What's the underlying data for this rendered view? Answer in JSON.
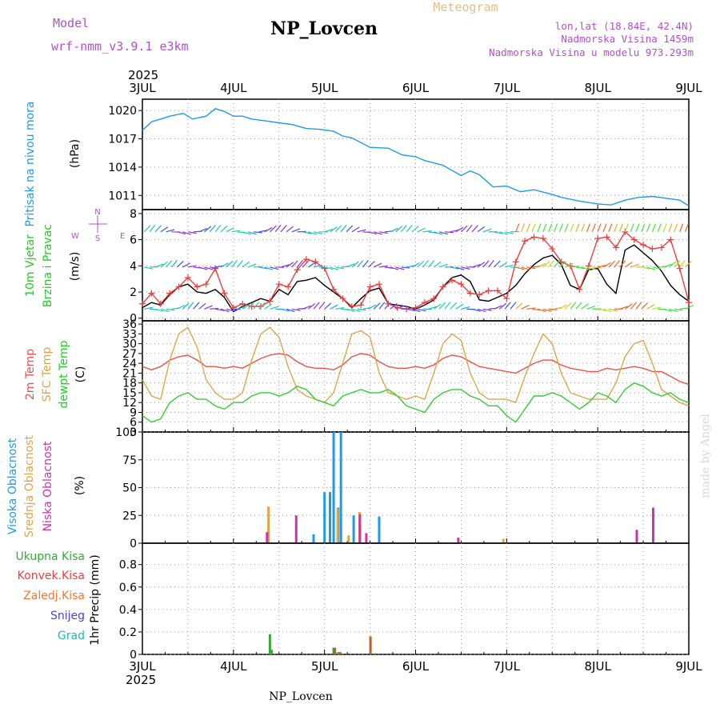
{
  "header": {
    "model_label": "Model",
    "model_name": "wrf-nmm_v3.9.1 e3km",
    "station": "NP_Lovcen",
    "meteogram": "Meteogram",
    "lonlat": "lon,lat (18.84E, 42.4N)",
    "elevation": "Nadmorska Visina 1459m",
    "model_elevation": "Nadmorska Visina u modelu 973.293m"
  },
  "time_axis": {
    "year": "2025",
    "ticks": [
      "3JUL",
      "4JUL",
      "5JUL",
      "6JUL",
      "7JUL",
      "8JUL",
      "9JUL"
    ]
  },
  "footer": {
    "station": "NP_Lovcen",
    "watermark": "made by Angel"
  },
  "colors": {
    "pressure": "#1e9be8",
    "temp2m": "#e8524a",
    "sfc": "#dca64a",
    "dewpt": "#33cc33",
    "high": "#1e9be8",
    "mid": "#dca64a",
    "low": "#cc33aa",
    "total": "#33aa33",
    "conv": "#e84040",
    "frozen": "#f07830",
    "snow": "#4444dd",
    "hail": "#22bbaa",
    "wind_speed": "#000000",
    "gust": "#e84040"
  },
  "chart_data": [
    {
      "type": "line",
      "id": "pressure",
      "ylabel_lines": [
        "Pritisak na nivou mora",
        "(hPa)"
      ],
      "yticks": [
        1011,
        1014,
        1017,
        1020
      ],
      "ylim": [
        1009.5,
        1021.2
      ],
      "x_days": [
        0,
        0.1,
        0.2,
        0.3,
        0.45,
        0.55,
        0.7,
        0.8,
        0.9,
        1.0,
        1.1,
        1.2,
        1.35,
        1.5,
        1.65,
        1.8,
        1.95,
        2.1,
        2.2,
        2.3,
        2.5,
        2.7,
        2.85,
        3.0,
        3.1,
        3.3,
        3.5,
        3.6,
        3.7,
        3.85,
        4.0,
        4.15,
        4.3,
        4.5,
        4.6,
        4.8,
        5.0,
        5.15,
        5.3,
        5.45,
        5.6,
        5.75,
        5.9,
        6.0
      ],
      "series": [
        {
          "name": "Pritisak",
          "color": "#1e9be8",
          "values": [
            1017.9,
            1018.8,
            1019.1,
            1019.4,
            1019.7,
            1019.1,
            1019.4,
            1020.2,
            1019.9,
            1019.4,
            1019.4,
            1019.1,
            1018.9,
            1018.7,
            1018.5,
            1018.1,
            1018.0,
            1017.8,
            1017.3,
            1017.1,
            1016.1,
            1016.0,
            1015.3,
            1015.1,
            1014.7,
            1014.2,
            1013.1,
            1013.6,
            1013.2,
            1011.9,
            1012.0,
            1011.4,
            1011.6,
            1011.1,
            1010.8,
            1010.4,
            1010.1,
            1010.0,
            1010.5,
            1010.8,
            1010.9,
            1010.7,
            1010.5,
            1009.9
          ]
        }
      ]
    },
    {
      "type": "line",
      "id": "wind",
      "ylabel_lines": [
        "10m Vjetar",
        "Brzina i Pravac",
        "(m/s)"
      ],
      "compass": {
        "n": "N",
        "s": "S",
        "e": "E",
        "w": "W"
      },
      "yticks": [
        0,
        2,
        4,
        6,
        8
      ],
      "ylim": [
        -0.2,
        8.3
      ],
      "x_days": [
        0,
        0.1,
        0.2,
        0.3,
        0.4,
        0.5,
        0.6,
        0.7,
        0.8,
        0.9,
        1.0,
        1.1,
        1.2,
        1.3,
        1.4,
        1.5,
        1.6,
        1.7,
        1.8,
        1.9,
        2.0,
        2.1,
        2.2,
        2.3,
        2.4,
        2.5,
        2.6,
        2.7,
        2.8,
        2.9,
        3.0,
        3.1,
        3.2,
        3.3,
        3.4,
        3.5,
        3.6,
        3.7,
        3.8,
        3.9,
        4.0,
        4.1,
        4.2,
        4.3,
        4.4,
        4.5,
        4.6,
        4.7,
        4.8,
        4.9,
        5.0,
        5.1,
        5.2,
        5.3,
        5.4,
        5.5,
        5.6,
        5.7,
        5.8,
        5.9,
        6.0
      ],
      "series": [
        {
          "name": "Brzina vjetra",
          "color": "#000000",
          "values": [
            0.8,
            1.2,
            1.0,
            1.8,
            2.4,
            2.6,
            2.0,
            1.9,
            2.2,
            1.6,
            0.5,
            0.9,
            1.2,
            1.5,
            1.3,
            2.2,
            1.8,
            2.8,
            2.9,
            3.1,
            2.5,
            2.0,
            1.5,
            0.8,
            1.5,
            2.1,
            2.3,
            1.1,
            1.0,
            0.9,
            0.7,
            1.0,
            1.4,
            2.4,
            3.1,
            3.3,
            2.8,
            1.4,
            1.3,
            1.6,
            1.9,
            2.5,
            3.4,
            4.1,
            4.6,
            4.8,
            4.1,
            2.5,
            2.2,
            3.7,
            3.8,
            2.6,
            1.9,
            5.2,
            5.6,
            5.0,
            4.4,
            3.6,
            2.5,
            1.8,
            1.3
          ]
        },
        {
          "name": "Udari",
          "color": "#e84040",
          "marker": "cross",
          "values": [
            1.1,
            1.9,
            1.1,
            1.9,
            2.4,
            3.1,
            2.4,
            2.6,
            3.8,
            1.9,
            0.8,
            1.1,
            0.9,
            0.9,
            1.3,
            2.6,
            2.4,
            3.7,
            4.5,
            4.3,
            3.8,
            2.2,
            1.5,
            0.9,
            1.0,
            2.4,
            2.6,
            1.1,
            0.8,
            0.7,
            0.8,
            1.2,
            1.5,
            2.4,
            2.9,
            2.6,
            1.9,
            1.8,
            2.1,
            2.1,
            1.5,
            4.3,
            5.9,
            6.2,
            6.1,
            5.3,
            4.3,
            4.0,
            2.2,
            4.0,
            6.1,
            6.2,
            5.4,
            6.6,
            6.0,
            5.6,
            5.3,
            5.4,
            6.0,
            3.8,
            1.2
          ]
        }
      ]
    },
    {
      "type": "line",
      "id": "temp",
      "ylabel_lines": [
        "2m Temp",
        "SFC Temp",
        "dewpt Temp",
        "(C)"
      ],
      "yticks": [
        3,
        6,
        9,
        12,
        15,
        18,
        21,
        24,
        27,
        30,
        33,
        36
      ],
      "ylim": [
        3,
        37
      ],
      "x_days": [
        0,
        0.1,
        0.2,
        0.3,
        0.4,
        0.5,
        0.6,
        0.7,
        0.8,
        0.9,
        1.0,
        1.1,
        1.2,
        1.3,
        1.4,
        1.5,
        1.6,
        1.7,
        1.8,
        1.9,
        2.0,
        2.1,
        2.2,
        2.3,
        2.4,
        2.5,
        2.6,
        2.7,
        2.8,
        2.9,
        3.0,
        3.1,
        3.2,
        3.3,
        3.4,
        3.5,
        3.6,
        3.7,
        3.8,
        3.9,
        4.0,
        4.1,
        4.2,
        4.3,
        4.4,
        4.5,
        4.6,
        4.7,
        4.8,
        4.9,
        5.0,
        5.1,
        5.2,
        5.3,
        5.4,
        5.5,
        5.6,
        5.7,
        5.8,
        5.9,
        6.0
      ],
      "series": [
        {
          "name": "2m Temp",
          "color": "#e8524a",
          "values": [
            23,
            22,
            23,
            25,
            26,
            26.5,
            25,
            23,
            23,
            22.5,
            23,
            22.5,
            24,
            25.5,
            26.5,
            27,
            26.5,
            24.5,
            23,
            22.5,
            22.5,
            22,
            23.5,
            26,
            27,
            26.5,
            24.5,
            23,
            22.5,
            22.5,
            23,
            22.5,
            23.5,
            25.5,
            26.5,
            26,
            24.5,
            23,
            22.5,
            22,
            21.5,
            21,
            22.5,
            24,
            25,
            25,
            23.5,
            22.5,
            22,
            21.5,
            21.5,
            22.5,
            22,
            22.5,
            23,
            22.5,
            21.5,
            21.5,
            20,
            18.5,
            17.5
          ]
        },
        {
          "name": "SFC Temp",
          "color": "#dca64a",
          "values": [
            19,
            14,
            13,
            25,
            33,
            35,
            29,
            19,
            15,
            13,
            13,
            15,
            25,
            33,
            35,
            32,
            23,
            16,
            14,
            13,
            12,
            15,
            24,
            33,
            34,
            32,
            21,
            15,
            14,
            13,
            14,
            13,
            21,
            30,
            33,
            31,
            21,
            15,
            13,
            13,
            13,
            12,
            20,
            27,
            33,
            30,
            21,
            15,
            14,
            13,
            13,
            13,
            18,
            26,
            30,
            31,
            24,
            16,
            14,
            12,
            11
          ]
        },
        {
          "name": "dewpt Temp",
          "color": "#33cc33",
          "values": [
            8,
            6,
            7,
            12,
            14,
            15,
            13,
            13,
            11,
            10,
            12,
            12,
            14,
            15,
            15,
            14,
            15,
            17,
            16,
            13,
            12,
            11,
            14,
            15,
            16,
            15,
            15,
            16,
            14,
            11,
            10,
            9,
            13,
            15,
            16,
            16,
            14,
            13,
            11,
            11,
            8,
            6,
            10,
            14,
            14,
            15,
            14,
            12,
            10,
            12,
            15,
            14,
            12,
            16,
            18,
            17,
            15,
            14,
            15,
            13,
            12
          ]
        }
      ]
    },
    {
      "type": "bar",
      "id": "clouds",
      "ylabel_lines": [
        "Visoka Oblacnost",
        "Srednja Oblacnost",
        "Niska Oblacnost",
        "(%)"
      ],
      "yticks": [
        0,
        25,
        50,
        75,
        100
      ],
      "ylim": [
        0,
        100
      ],
      "series": [
        {
          "name": "Visoka Oblacnost",
          "color": "#1e9be8",
          "x_days": [
            1.88,
            2.0,
            2.06,
            2.1,
            2.15,
            2.18,
            2.32,
            2.6
          ],
          "values": [
            8,
            46,
            46,
            100,
            32,
            100,
            25,
            24
          ]
        },
        {
          "name": "Srednja Oblacnost",
          "color": "#dca64a",
          "x_days": [
            1.38,
            2.14,
            2.26,
            2.38,
            3.96
          ],
          "values": [
            33,
            31,
            7,
            28,
            4
          ]
        },
        {
          "name": "Niska Oblacnost",
          "color": "#cc33aa",
          "x_days": [
            1.36,
            1.68,
            2.38,
            2.45,
            3.46,
            5.42,
            5.6
          ],
          "values": [
            10,
            25,
            26,
            9,
            5,
            12,
            32
          ]
        }
      ]
    },
    {
      "type": "bar",
      "id": "precip",
      "ylabel_lines": [
        "1hr Precip (mm)"
      ],
      "legend": [
        "Ukupna Kisa",
        "Konvek.Kisa",
        "Zaledj.Kisa",
        "Snijeg",
        "Grad"
      ],
      "yticks": [
        0,
        0.2,
        0.4,
        0.6,
        0.8
      ],
      "ylim": [
        0,
        0.99
      ],
      "series": [
        {
          "name": "Ukupna Kisa",
          "color": "#33aa33",
          "x_days": [
            1.4,
            1.42,
            2.1,
            2.15
          ],
          "values": [
            0.18,
            0.04,
            0.06,
            0.02
          ]
        },
        {
          "name": "Zaledj.Kisa",
          "color": "#b8602a",
          "x_days": [
            2.11,
            2.17,
            2.5,
            2.55
          ],
          "values": [
            0.06,
            0.02,
            0.16,
            0.01
          ]
        }
      ]
    }
  ]
}
